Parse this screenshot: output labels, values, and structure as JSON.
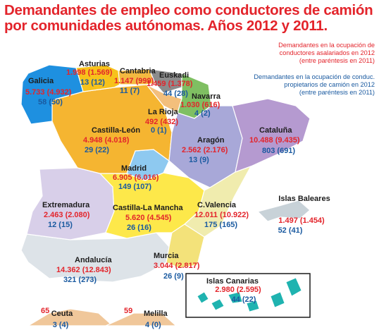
{
  "title": {
    "line1": "Demandantes de empleo como conductores de camión",
    "line2": "por comunidades autónomas. Años 2012 y 2011."
  },
  "legend": {
    "red": [
      "Demandantes en la ocupación de",
      "conductores asalariados en 2012",
      "(entre paréntesis en 2011)"
    ],
    "blue": [
      "Demandantes en la ocupación de conduc.",
      "propietarios de camión en 2012",
      "(entre paréntesis en 2011)"
    ],
    "red_color": "#e3242b",
    "blue_color": "#1a5aa0"
  },
  "regions": [
    {
      "key": "galicia",
      "name": "Galicia",
      "asalariados": "5.733 (4.932)",
      "propietarios": "58 (50)",
      "color": "#1e90e0"
    },
    {
      "key": "asturias",
      "name": "Asturias",
      "asalariados": "1.998 (1.569)",
      "propietarios": "13 (12)",
      "color": "#f7c21b"
    },
    {
      "key": "cantabria",
      "name": "Cantabria",
      "asalariados": "1.147 (999)",
      "propietarios": "11 (7)",
      "color": "#f4b940"
    },
    {
      "key": "euskadi",
      "name": "Euskadi",
      "asalariados": "1.459 (1.378)",
      "propietarios": "44 (28)",
      "color": "#8c8c8c"
    },
    {
      "key": "navarra",
      "name": "Navarra",
      "asalariados": "1.030 (616)",
      "propietarios": "4 (2)",
      "color": "#7fbf62"
    },
    {
      "key": "larioja",
      "name": "La Rioja",
      "asalariados": "492 (432)",
      "propietarios": "0 (1)",
      "color": "#f3bf7c"
    },
    {
      "key": "cataluna",
      "name": "Cataluña",
      "asalariados": "10.488 (9.435)",
      "propietarios": "803 (691)",
      "color": "#b59ad0"
    },
    {
      "key": "castillaleon",
      "name": "Castilla-León",
      "asalariados": "4.948 (4.018)",
      "propietarios": "29 (22)",
      "color": "#f5b531"
    },
    {
      "key": "aragon",
      "name": "Aragón",
      "asalariados": "2.562 (2.176)",
      "propietarios": "13 (9)",
      "color": "#a8a8d8"
    },
    {
      "key": "madrid",
      "name": "Madrid",
      "asalariados": "6.905 (6.016)",
      "propietarios": "149 (107)",
      "color": "#8ec9f0"
    },
    {
      "key": "extremadura",
      "name": "Extremadura",
      "asalariados": "2.463 (2.080)",
      "propietarios": "12 (15)",
      "color": "#d8cfe9"
    },
    {
      "key": "castillamancha",
      "name": "Castilla-La Mancha",
      "asalariados": "5.620 (4.545)",
      "propietarios": "26 (16)",
      "color": "#fde84a"
    },
    {
      "key": "valencia",
      "name": "C.Valencia",
      "asalariados": "12.011 (10.922)",
      "propietarios": "175 (165)",
      "color": "#f0ecae"
    },
    {
      "key": "baleares",
      "name": "Islas Baleares",
      "asalariados": "1.497 (1.454)",
      "propietarios": "52 (41)",
      "color": "#c8d2d8"
    },
    {
      "key": "andalucia",
      "name": "Andalucía",
      "asalariados": "14.362 (12.843)",
      "propietarios": "321 (273)",
      "color": "#dde3e8"
    },
    {
      "key": "murcia",
      "name": "Murcia",
      "asalariados": "3.044 (2.817)",
      "propietarios": "26 (9)",
      "color": "#f3e27a"
    },
    {
      "key": "canarias",
      "name": "Islas Canarias",
      "asalariados": "2.980 (2.595)",
      "propietarios": "44 (22)",
      "color": "#1fb3b0"
    },
    {
      "key": "ceuta",
      "name": "Ceuta",
      "asalariados": "65",
      "propietarios": "3 (4)",
      "color": "#f0c79a"
    },
    {
      "key": "melilla",
      "name": "Melilla",
      "asalariados": "59",
      "propietarios": "4 (0)",
      "color": "#f0c79a"
    }
  ],
  "colors": {
    "sea": "#ffffff",
    "border": "#ffffff",
    "portugal": "#ffffff"
  }
}
